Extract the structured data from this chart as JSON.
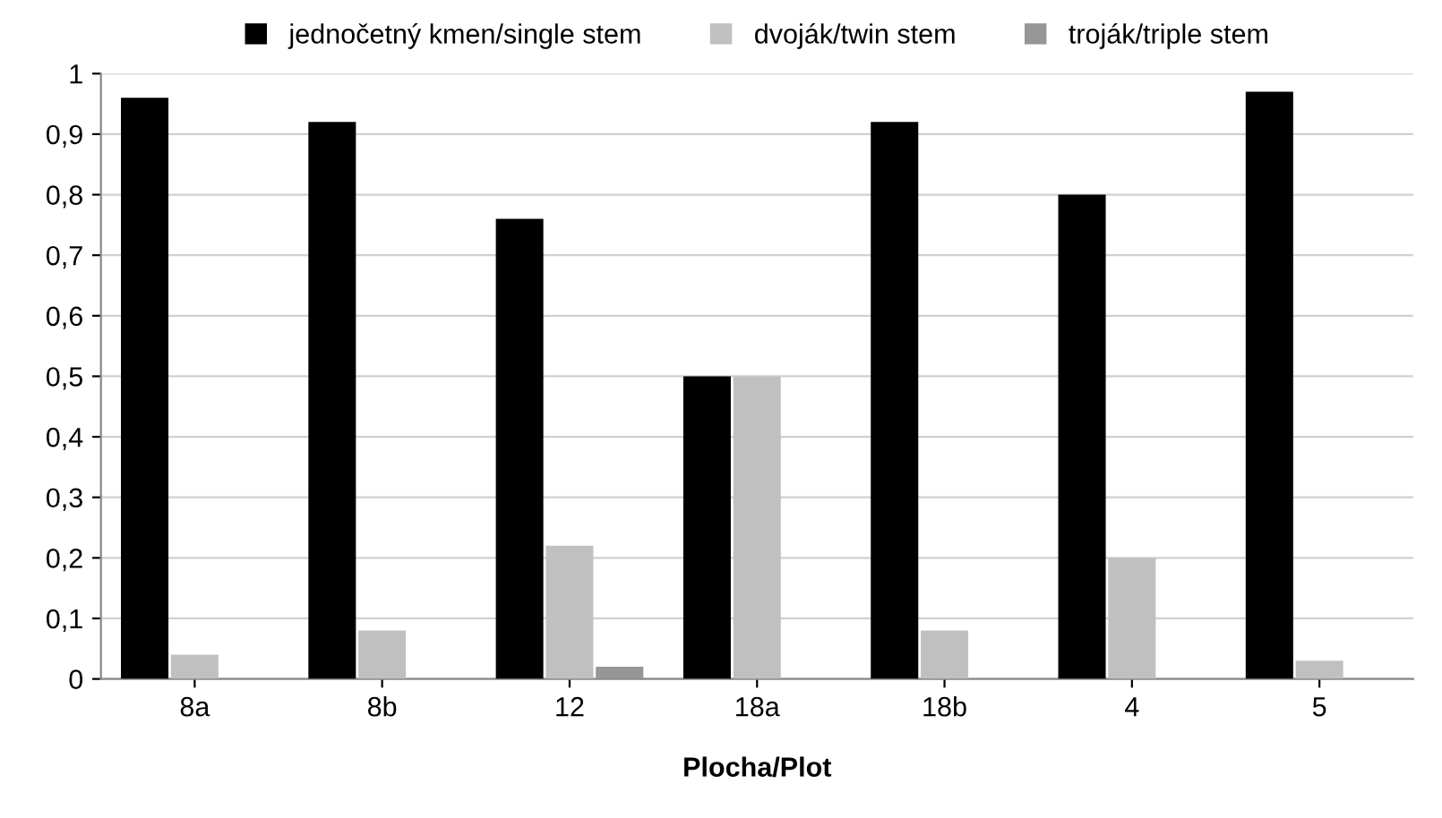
{
  "chart_data": {
    "type": "bar",
    "xlabel": "Plocha/Plot",
    "categories": [
      "8a",
      "8b",
      "12",
      "18a",
      "18b",
      "4",
      "5"
    ],
    "series": [
      {
        "name": "jednočetný kmen/single stem",
        "color": "#000000",
        "values": [
          0.96,
          0.92,
          0.76,
          0.5,
          0.92,
          0.8,
          0.97
        ]
      },
      {
        "name": "dvoják/twin stem",
        "color": "#c0c0c0",
        "values": [
          0.04,
          0.08,
          0.22,
          0.5,
          0.08,
          0.2,
          0.03
        ]
      },
      {
        "name": "troják/triple stem",
        "color": "#969696",
        "values": [
          0,
          0,
          0.02,
          0,
          0,
          0,
          0
        ]
      }
    ],
    "ylim": [
      0,
      1
    ],
    "yticks": [
      0,
      {
        "value": 0.1,
        "label": "0,1"
      },
      {
        "value": 0.2,
        "label": "0,2"
      },
      {
        "value": 0.3,
        "label": "0,3"
      },
      {
        "value": 0.4,
        "label": "0,4"
      },
      {
        "value": 0.5,
        "label": "0,5"
      },
      {
        "value": 0.6,
        "label": "0,6"
      },
      {
        "value": 0.7,
        "label": "0,7"
      },
      {
        "value": 0.8,
        "label": "0,8"
      },
      {
        "value": 0.9,
        "label": "0,9"
      },
      1
    ],
    "grid": "y",
    "legend": "top"
  }
}
